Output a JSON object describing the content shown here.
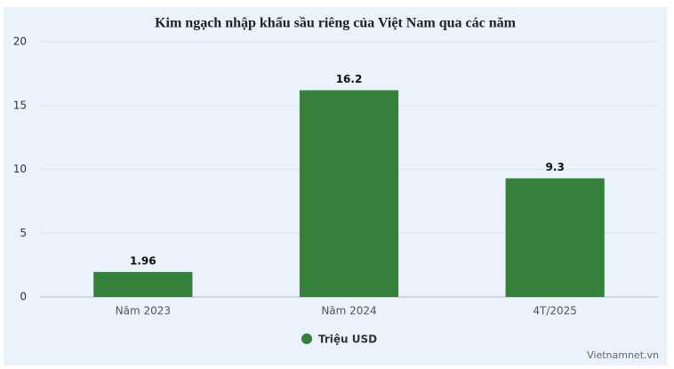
{
  "chart_data": {
    "type": "bar",
    "title": "Kim ngạch nhập khẩu sầu riêng của Việt Nam qua các năm",
    "categories": [
      "Năm 2023",
      "Năm 2024",
      "4T/2025"
    ],
    "series": [
      {
        "name": "Triệu USD",
        "color": "#35803b",
        "values": [
          1.96,
          16.2,
          9.3
        ]
      }
    ],
    "ylim": [
      0,
      20
    ],
    "yticks": [
      0,
      5,
      10,
      15,
      20
    ],
    "grid": true,
    "legend": "bottom",
    "credit": "Vietnamnet.vn"
  }
}
